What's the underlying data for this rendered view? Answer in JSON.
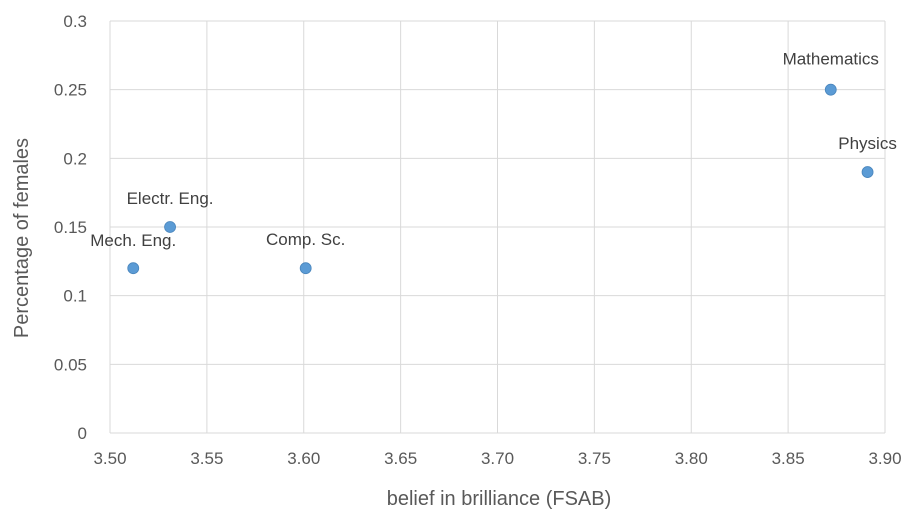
{
  "chart_data": {
    "type": "scatter",
    "title": "",
    "xlabel": "belief in brilliance (FSAB)",
    "ylabel": "Percentage of females",
    "xlim": [
      3.5,
      3.9
    ],
    "ylim": [
      0,
      0.3
    ],
    "x_ticks": [
      "3.50",
      "3.55",
      "3.60",
      "3.65",
      "3.70",
      "3.75",
      "3.80",
      "3.85",
      "3.90"
    ],
    "y_ticks": [
      "0",
      "0.05",
      "0.1",
      "0.15",
      "0.2",
      "0.25",
      "0.3"
    ],
    "grid": true,
    "legend": "none",
    "marker_color": "#5b9bd5",
    "points": [
      {
        "label": "Mech. Eng.",
        "x": 3.512,
        "y": 0.12
      },
      {
        "label": "Electr. Eng.",
        "x": 3.531,
        "y": 0.15
      },
      {
        "label": "Comp. Sc.",
        "x": 3.601,
        "y": 0.12
      },
      {
        "label": "Mathematics",
        "x": 3.872,
        "y": 0.25
      },
      {
        "label": "Physics",
        "x": 3.891,
        "y": 0.19
      }
    ]
  }
}
